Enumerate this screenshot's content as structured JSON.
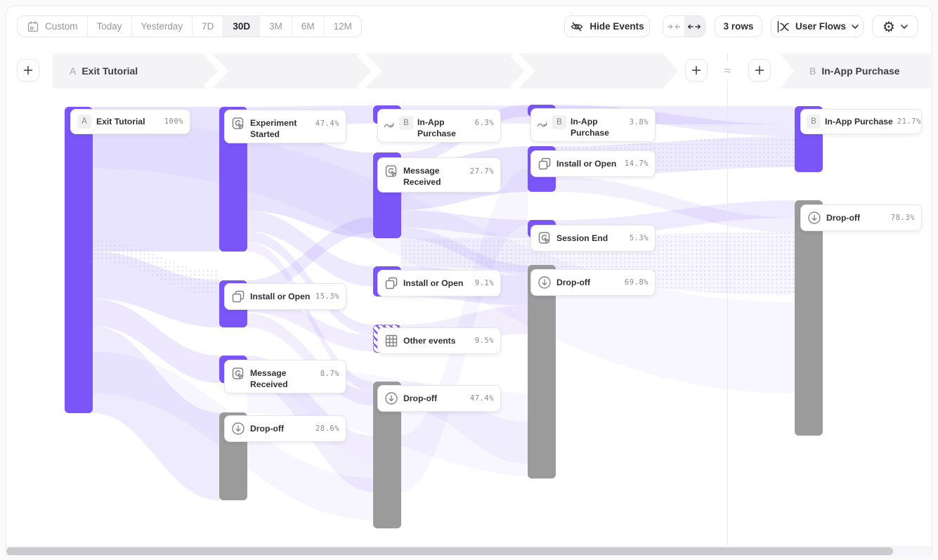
{
  "toolbar": {
    "date_ranges": [
      "Custom",
      "Today",
      "Yesterday",
      "7D",
      "30D",
      "3M",
      "6M",
      "12M"
    ],
    "selected_range": "30D",
    "hide_events_label": "Hide Events",
    "rows_label": "3 rows",
    "view_label": "User Flows"
  },
  "sections": {
    "a": {
      "letter": "A",
      "title": "Exit Tutorial"
    },
    "b": {
      "letter": "B",
      "title": "In-App Purchase"
    },
    "separator": "≈"
  },
  "colors": {
    "purple": "#7B55F8",
    "gray": "#9B9B9B",
    "ribbon": "#7C5CF6"
  },
  "chart_data": {
    "type": "sankey-user-flow",
    "start_event": "Exit Tutorial",
    "end_event": "In-App Purchase",
    "columns": [
      [
        {
          "label": "Exit Tutorial",
          "pct": "100%",
          "icon": "letter-a",
          "kind": "event"
        }
      ],
      [
        {
          "label": "Experiment Started",
          "pct": "47.4%",
          "icon": "tap",
          "kind": "event"
        },
        {
          "label": "Install or Open",
          "pct": "15.3%",
          "icon": "copy",
          "kind": "event"
        },
        {
          "label": "Message Received",
          "pct": "8.7%",
          "icon": "tap",
          "kind": "event"
        },
        {
          "label": "Drop-off",
          "pct": "28.6%",
          "icon": "dropoff",
          "kind": "dropoff"
        }
      ],
      [
        {
          "label": "In-App Purchase",
          "pct": "6.3%",
          "icon": "jump-b",
          "kind": "event"
        },
        {
          "label": "Message Received",
          "pct": "27.7%",
          "icon": "tap",
          "kind": "event"
        },
        {
          "label": "Install or Open",
          "pct": "9.1%",
          "icon": "copy",
          "kind": "event"
        },
        {
          "label": "Other events",
          "pct": "9.5%",
          "icon": "grid",
          "kind": "other"
        },
        {
          "label": "Drop-off",
          "pct": "47.4%",
          "icon": "dropoff",
          "kind": "dropoff"
        }
      ],
      [
        {
          "label": "In-App Purchase",
          "pct": "3.8%",
          "icon": "jump-b",
          "kind": "event"
        },
        {
          "label": "Install or Open",
          "pct": "14.7%",
          "icon": "copy",
          "kind": "event"
        },
        {
          "label": "Session End",
          "pct": "5.3%",
          "icon": "tap",
          "kind": "event"
        },
        {
          "label": "Drop-off",
          "pct": "69.8%",
          "icon": "dropoff",
          "kind": "dropoff"
        }
      ],
      [
        {
          "label": "In-App Purchase",
          "pct": "21.7%",
          "icon": "letter-b",
          "kind": "event"
        },
        {
          "label": "Drop-off",
          "pct": "78.3%",
          "icon": "dropoff",
          "kind": "dropoff"
        }
      ]
    ]
  }
}
